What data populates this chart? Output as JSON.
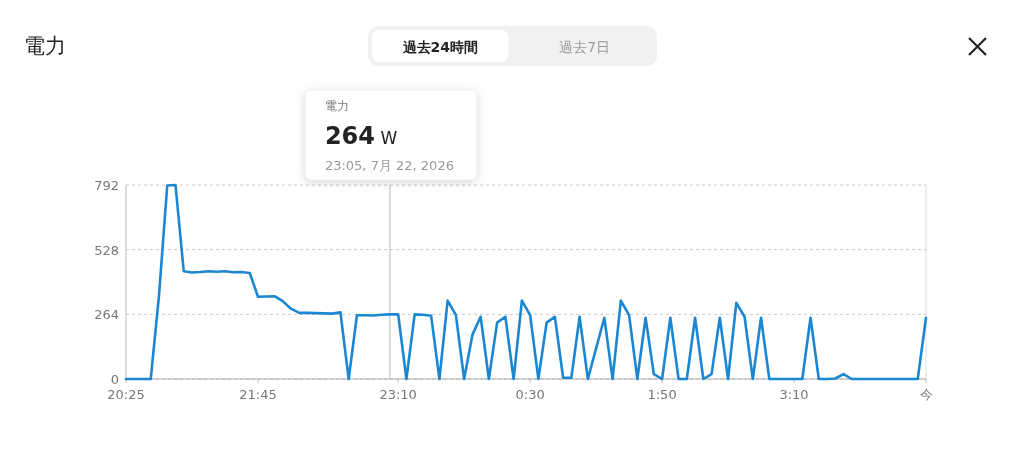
{
  "chart_data": {
    "type": "line",
    "title": "電力",
    "annotations": [
      "過去24時間",
      "過去7日",
      "電力\n264 W\n23:05, 7月 22, 2026"
    ],
    "x": [
      "2026-07-22T20:25",
      "2026-07-22T20:30",
      "2026-07-22T20:35",
      "2026-07-22T20:40",
      "2026-07-22T20:45",
      "2026-07-22T20:50",
      "2026-07-22T20:55",
      "2026-07-22T21:00",
      "2026-07-22T21:05",
      "2026-07-22T21:10",
      "2026-07-22T21:15",
      "2026-07-22T21:20",
      "2026-07-22T21:25",
      "2026-07-22T21:30",
      "2026-07-22T21:35",
      "2026-07-22T21:40",
      "2026-07-22T21:45",
      "2026-07-22T21:50",
      "2026-07-22T21:55",
      "2026-07-22T22:00",
      "2026-07-22T22:05",
      "2026-07-22T22:10",
      "2026-07-22T22:15",
      "2026-07-22T22:20",
      "2026-07-22T22:25",
      "2026-07-22T22:30",
      "2026-07-22T22:35",
      "2026-07-22T22:40",
      "2026-07-22T22:45",
      "2026-07-22T22:50",
      "2026-07-22T22:55",
      "2026-07-22T23:00",
      "2026-07-22T23:05",
      "2026-07-22T23:10",
      "2026-07-22T23:15",
      "2026-07-22T23:20",
      "2026-07-22T23:25",
      "2026-07-22T23:30",
      "2026-07-22T23:35",
      "2026-07-22T23:40",
      "2026-07-22T23:45",
      "2026-07-22T23:50",
      "2026-07-22T23:55",
      "2026-07-23T00:00",
      "2026-07-23T00:05",
      "2026-07-23T00:10",
      "2026-07-23T00:15",
      "2026-07-23T00:20",
      "2026-07-23T00:25",
      "2026-07-23T00:30",
      "2026-07-23T00:35",
      "2026-07-23T00:40",
      "2026-07-23T00:45",
      "2026-07-23T00:50",
      "2026-07-23T00:55",
      "2026-07-23T01:00",
      "2026-07-23T01:05",
      "2026-07-23T01:10",
      "2026-07-23T01:15",
      "2026-07-23T01:20",
      "2026-07-23T01:25",
      "2026-07-23T01:30",
      "2026-07-23T01:35",
      "2026-07-23T01:40",
      "2026-07-23T01:45",
      "2026-07-23T01:50",
      "2026-07-23T01:55",
      "2026-07-23T02:00",
      "2026-07-23T02:05",
      "2026-07-23T02:10",
      "2026-07-23T02:15",
      "2026-07-23T02:20",
      "2026-07-23T02:25",
      "2026-07-23T02:30",
      "2026-07-23T02:35",
      "2026-07-23T02:40",
      "2026-07-23T02:45",
      "2026-07-23T02:50",
      "2026-07-23T02:55",
      "2026-07-23T03:00",
      "2026-07-23T03:05",
      "2026-07-23T03:10",
      "2026-07-23T03:15",
      "2026-07-23T03:20",
      "2026-07-23T03:25",
      "2026-07-23T03:30",
      "2026-07-23T03:35",
      "2026-07-23T03:40",
      "2026-07-23T03:45",
      "2026-07-23T03:50",
      "2026-07-23T03:55",
      "2026-07-23T04:00",
      "2026-07-23T04:05",
      "2026-07-23T04:10",
      "2026-07-23T04:15",
      "2026-07-23T04:20",
      "2026-07-23T04:25",
      "2026-07-23T04:30"
    ],
    "values": [
      0,
      0,
      0,
      0,
      340,
      790,
      792,
      440,
      435,
      437,
      440,
      438,
      440,
      436,
      437,
      433,
      336,
      337,
      338,
      318,
      287,
      270,
      270,
      269,
      268,
      267,
      272,
      0,
      260,
      260,
      259,
      262,
      264,
      264,
      0,
      264,
      262,
      258,
      0,
      320,
      261,
      0,
      180,
      254,
      0,
      230,
      254,
      0,
      320,
      261,
      0,
      230,
      254,
      5,
      5,
      254,
      0,
      125,
      250,
      0,
      320,
      261,
      0,
      250,
      20,
      0,
      250,
      0,
      0,
      250,
      0,
      20,
      250,
      0,
      311,
      254,
      0,
      250,
      0,
      0,
      0,
      0,
      0,
      250,
      0,
      0,
      2,
      20,
      0,
      0,
      0,
      0,
      0,
      0,
      0,
      0,
      0,
      250
    ],
    "color": "#1b87d2",
    "xlim": [
      "2026-07-22T20:25",
      "2026-07-23T04:30"
    ],
    "xticks": [
      {
        "value": "2026-07-22T20:25",
        "label": "20:25"
      },
      {
        "value": "2026-07-22T21:45",
        "label": "21:45"
      },
      {
        "value": "2026-07-22T23:10",
        "label": "23:10"
      },
      {
        "value": "2026-07-23T00:30",
        "label": "0:30"
      },
      {
        "value": "2026-07-23T01:50",
        "label": "1:50"
      },
      {
        "value": "2026-07-23T03:10",
        "label": "3:10"
      },
      {
        "value": "2026-07-23T04:30",
        "label": "今"
      }
    ],
    "ylim": [
      0,
      792
    ],
    "yticks": [
      0,
      264,
      528,
      792
    ],
    "grid": "y",
    "ref_lines": [
      {
        "axis": "x",
        "value": "2026-07-22T23:05",
        "label": null,
        "color": "#bbbbbb"
      }
    ]
  }
}
